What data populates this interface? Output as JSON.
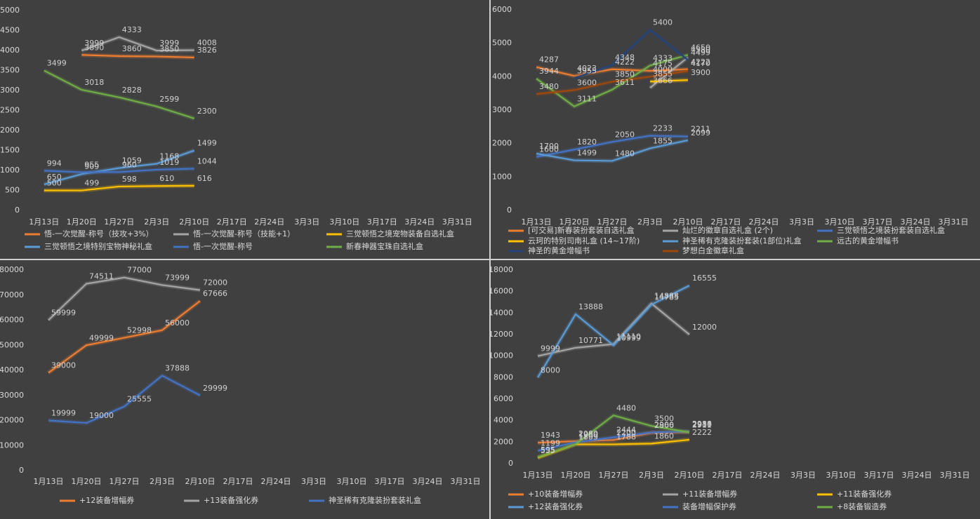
{
  "chart_data": [
    {
      "type": "line",
      "categories": [
        "1月13日",
        "1月20日",
        "1月27日",
        "2月3日",
        "2月10日",
        "2月17日",
        "2月24日",
        "3月3日",
        "3月10日",
        "3月17日",
        "3月24日",
        "3月31日"
      ],
      "ylim": [
        0,
        5000
      ],
      "yticks": [
        0,
        500,
        1000,
        1500,
        2000,
        2500,
        3000,
        3500,
        4000,
        4500,
        5000
      ],
      "series": [
        {
          "name": "悟-一次觉醒-称号（技攻+3%）",
          "color": "#ed7d31",
          "values": [
            null,
            3890,
            3860,
            3850,
            3826,
            null,
            null,
            null,
            null,
            null,
            null,
            null
          ]
        },
        {
          "name": "悟-一次觉醒-称号（技能+1）",
          "color": "#a5a5a5",
          "values": [
            null,
            3999,
            4333,
            3999,
            4008,
            null,
            null,
            null,
            null,
            null,
            null,
            null
          ]
        },
        {
          "name": "三觉顿悟之境宠物装备自选礼盒",
          "color": "#ffc000",
          "values": [
            500,
            499,
            598,
            610,
            616,
            null,
            null,
            null,
            null,
            null,
            null,
            null
          ]
        },
        {
          "name": "三觉顿悟之境特别宝物神秘礼盒",
          "color": "#5b9bd5",
          "values": [
            650,
            909,
            1059,
            1168,
            1499,
            null,
            null,
            null,
            null,
            null,
            null,
            null
          ]
        },
        {
          "name": "悟-一次觉醒-称号",
          "color": "#4472c4",
          "values": [
            994,
            955,
            960,
            1019,
            1044,
            null,
            null,
            null,
            null,
            null,
            null,
            null
          ]
        },
        {
          "name": "新春神器宝珠自选礼盒",
          "color": "#70ad47",
          "values": [
            3499,
            3018,
            2828,
            2599,
            2300,
            null,
            null,
            null,
            null,
            null,
            null,
            null
          ]
        }
      ]
    },
    {
      "type": "line",
      "categories": [
        "1月13日",
        "1月20日",
        "1月27日",
        "2月3日",
        "2月10日",
        "2月17日",
        "2月24日",
        "3月3日",
        "3月10日",
        "3月17日",
        "3月24日",
        "3月31日"
      ],
      "ylim": [
        0,
        6000
      ],
      "yticks": [
        0,
        1000,
        2000,
        3000,
        4000,
        5000,
        6000
      ],
      "series": [
        {
          "name": "[可交易]新春装扮套装自选礼盒",
          "color": "#ed7d31",
          "values": [
            4287,
            4023,
            4222,
            4175,
            4222,
            null,
            null,
            null,
            null,
            null,
            null,
            null
          ]
        },
        {
          "name": "灿烂的徽章自选礼盒 (2个)",
          "color": "#a5a5a5",
          "values": [
            null,
            null,
            null,
            3666,
            4580,
            null,
            null,
            null,
            null,
            null,
            null,
            null
          ]
        },
        {
          "name": "三觉顿悟之境装扮套装自选礼盒",
          "color": "#4472c4",
          "values": [
            1600,
            1820,
            2050,
            2233,
            2211,
            null,
            null,
            null,
            null,
            null,
            null,
            null
          ]
        },
        {
          "name": "云珂的特别司南礼盒 (14~17阶)",
          "color": "#ffc000",
          "values": [
            null,
            null,
            null,
            3855,
            3900,
            null,
            null,
            null,
            null,
            null,
            null,
            null
          ]
        },
        {
          "name": "神圣稀有克隆装扮套装(1部位)礼盒",
          "color": "#5b9bd5",
          "values": [
            1700,
            1499,
            1480,
            1855,
            2099,
            null,
            null,
            null,
            null,
            null,
            null,
            null
          ]
        },
        {
          "name": "远古的黄金增幅书",
          "color": "#70ad47",
          "values": [
            3944,
            3111,
            3611,
            4333,
            4650,
            null,
            null,
            null,
            null,
            null,
            null,
            null
          ]
        },
        {
          "name": "神圣的黄金增幅书",
          "color": "#264478",
          "values": [
            null,
            3955,
            4348,
            5400,
            4499,
            null,
            null,
            null,
            null,
            null,
            null,
            null
          ]
        },
        {
          "name": "梦想白金徽章礼盒",
          "color": "#9e480e",
          "values": [
            3480,
            3600,
            3850,
            4000,
            4170,
            null,
            null,
            null,
            null,
            null,
            null,
            null
          ]
        }
      ]
    },
    {
      "type": "line",
      "categories": [
        "1月13日",
        "1月20日",
        "1月27日",
        "2月3日",
        "2月10日",
        "2月17日",
        "2月24日",
        "3月3日",
        "3月10日",
        "3月17日",
        "3月24日",
        "3月31日"
      ],
      "ylim": [
        0,
        80000
      ],
      "yticks": [
        0,
        10000,
        20000,
        30000,
        40000,
        50000,
        60000,
        70000,
        80000
      ],
      "series": [
        {
          "name": "+12装备增幅券",
          "color": "#ed7d31",
          "values": [
            39000,
            49999,
            52998,
            56000,
            67666,
            null,
            null,
            null,
            null,
            null,
            null,
            null
          ]
        },
        {
          "name": "+13装备强化券",
          "color": "#a5a5a5",
          "values": [
            59999,
            74511,
            77000,
            73999,
            72000,
            null,
            null,
            null,
            null,
            null,
            null,
            null
          ]
        },
        {
          "name": "神圣稀有克隆装扮套装礼盒",
          "color": "#4472c4",
          "values": [
            19999,
            19000,
            25555,
            37888,
            29999,
            null,
            null,
            null,
            null,
            null,
            null,
            null
          ]
        }
      ]
    },
    {
      "type": "line",
      "categories": [
        "1月13日",
        "1月20日",
        "1月27日",
        "2月3日",
        "2月10日",
        "2月17日",
        "2月24日",
        "3月3日",
        "3月10日",
        "3月17日",
        "3月24日",
        "3月31日"
      ],
      "ylim": [
        0,
        18000
      ],
      "yticks": [
        0,
        2000,
        4000,
        6000,
        8000,
        10000,
        12000,
        14000,
        16000,
        18000
      ],
      "series": [
        {
          "name": "+10装备增幅券",
          "color": "#ed7d31",
          "values": [
            1943,
            2080,
            2200,
            2866,
            2939,
            null,
            null,
            null,
            null,
            null,
            null,
            null
          ]
        },
        {
          "name": "+11装备增幅券",
          "color": "#a5a5a5",
          "values": [
            9999,
            10771,
            11110,
            14888,
            12000,
            null,
            null,
            null,
            null,
            null,
            null,
            null
          ]
        },
        {
          "name": "+11装备强化券",
          "color": "#ffc000",
          "values": [
            535,
            1799,
            1788,
            1860,
            2222,
            null,
            null,
            null,
            null,
            null,
            null,
            null
          ]
        },
        {
          "name": "+12装备强化券",
          "color": "#5b9bd5",
          "values": [
            8000,
            13888,
            10999,
            14785,
            16555,
            null,
            null,
            null,
            null,
            null,
            null,
            null
          ]
        },
        {
          "name": "装备增幅保护券",
          "color": "#4472c4",
          "values": [
            1199,
            1980,
            2444,
            2900,
            2988,
            null,
            null,
            null,
            null,
            null,
            null,
            null
          ]
        },
        {
          "name": "+8装备锻造券",
          "color": "#70ad47",
          "values": [
            595,
            1809,
            4480,
            3500,
            2911,
            null,
            null,
            null,
            null,
            null,
            null,
            null
          ]
        }
      ]
    }
  ]
}
